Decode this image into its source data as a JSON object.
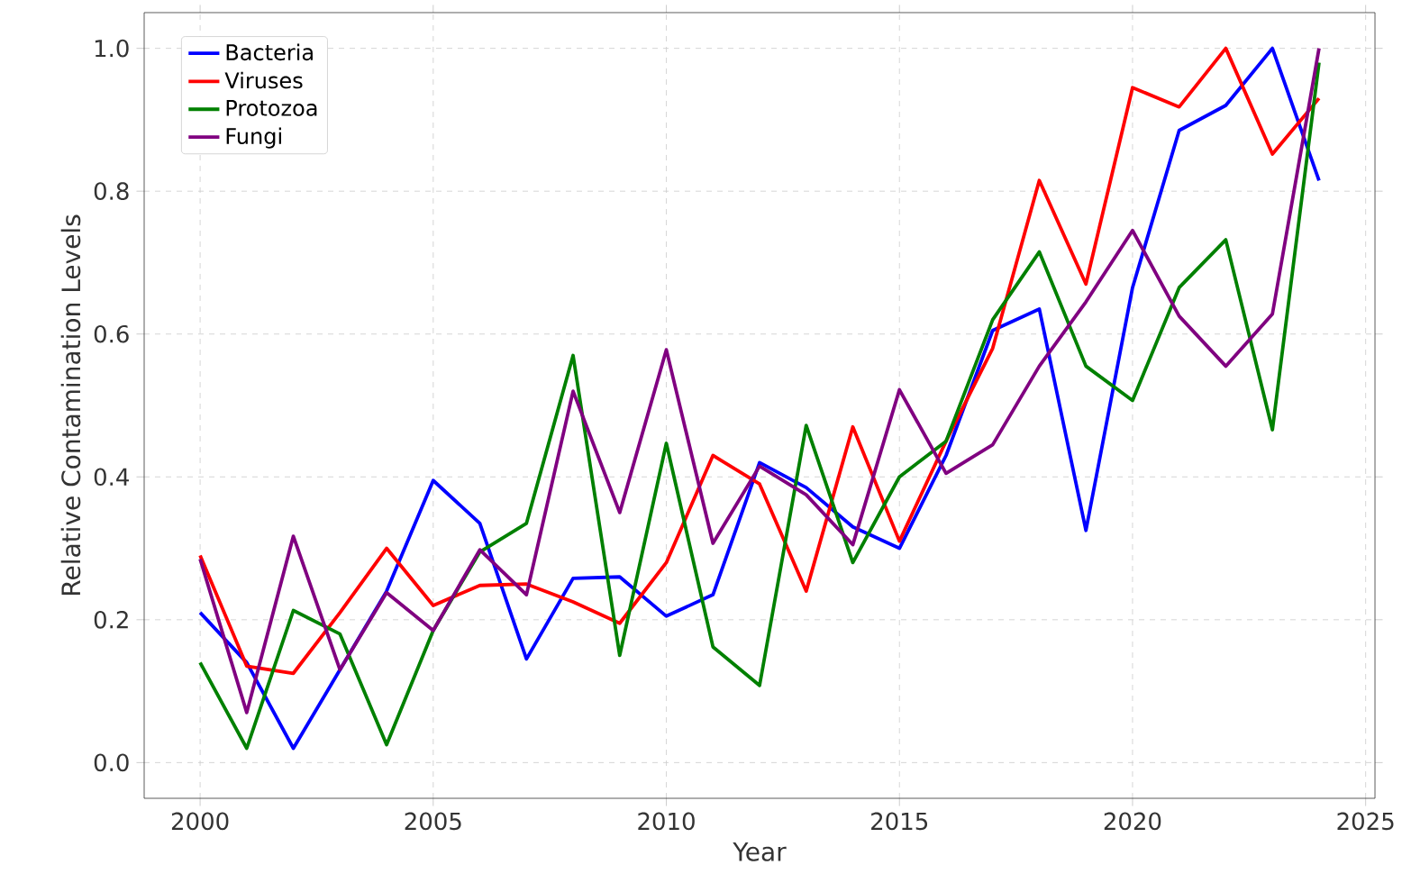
{
  "chart_data": {
    "type": "line",
    "xlabel": "Year",
    "ylabel": "Relative Contamination Levels",
    "x": [
      2000,
      2001,
      2002,
      2003,
      2004,
      2005,
      2006,
      2007,
      2008,
      2009,
      2010,
      2011,
      2012,
      2013,
      2014,
      2015,
      2016,
      2017,
      2018,
      2019,
      2020,
      2021,
      2022,
      2023,
      2024
    ],
    "series": [
      {
        "name": "Bacteria",
        "color": "#0000ff",
        "values": [
          0.21,
          0.14,
          0.02,
          0.13,
          0.24,
          0.395,
          0.335,
          0.145,
          0.258,
          0.26,
          0.205,
          0.235,
          0.42,
          0.385,
          0.33,
          0.3,
          0.43,
          0.605,
          0.635,
          0.325,
          0.665,
          0.885,
          0.92,
          1.0,
          0.815
        ]
      },
      {
        "name": "Viruses",
        "color": "#ff0000",
        "values": [
          0.29,
          0.135,
          0.125,
          0.21,
          0.3,
          0.22,
          0.248,
          0.25,
          0.225,
          0.195,
          0.28,
          0.43,
          0.39,
          0.24,
          0.47,
          0.31,
          0.45,
          0.58,
          0.815,
          0.67,
          0.945,
          0.918,
          1.0,
          0.852,
          0.93
        ]
      },
      {
        "name": "Protozoa",
        "color": "#008000",
        "values": [
          0.14,
          0.02,
          0.213,
          0.18,
          0.025,
          0.185,
          0.295,
          0.335,
          0.57,
          0.15,
          0.447,
          0.162,
          0.108,
          0.472,
          0.28,
          0.4,
          0.45,
          0.62,
          0.715,
          0.555,
          0.507,
          0.665,
          0.732,
          0.466,
          0.98
        ]
      },
      {
        "name": "Fungi",
        "color": "#800080",
        "values": [
          0.285,
          0.07,
          0.317,
          0.13,
          0.238,
          0.185,
          0.298,
          0.235,
          0.52,
          0.35,
          0.578,
          0.307,
          0.415,
          0.375,
          0.305,
          0.522,
          0.405,
          0.445,
          0.555,
          0.645,
          0.745,
          0.625,
          0.555,
          0.628,
          1.0
        ]
      }
    ],
    "xlim": [
      1998.8,
      2025.2
    ],
    "ylim": [
      -0.05,
      1.05
    ],
    "xticks": [
      2000,
      2005,
      2010,
      2015,
      2020,
      2025
    ],
    "yticks": [
      {
        "value": 0,
        "label": "0.0"
      },
      {
        "value": 0.2,
        "label": "0.2"
      },
      {
        "value": 0.4,
        "label": "0.4"
      },
      {
        "value": 0.6,
        "label": "0.6"
      },
      {
        "value": 0.8,
        "label": "0.8"
      },
      {
        "value": 1.0,
        "label": "1.0"
      }
    ],
    "grid": true,
    "legend": "top left",
    "marker": "none",
    "line_style": "solid"
  }
}
